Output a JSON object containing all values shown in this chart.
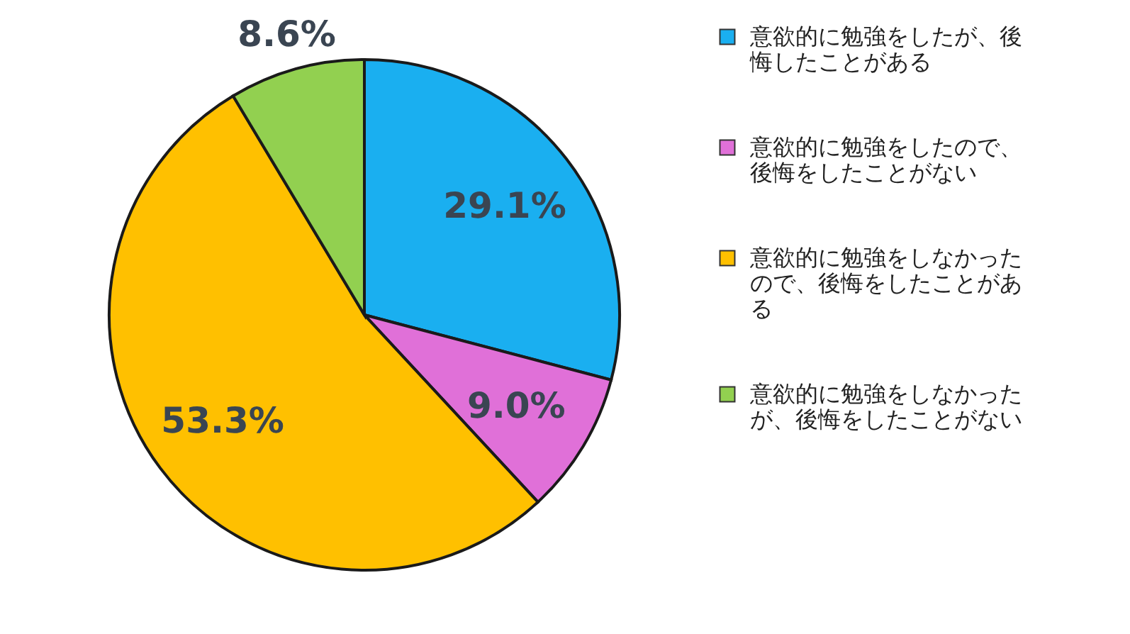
{
  "chart_data": {
    "type": "pie",
    "categories": [
      "意欲的に勉強をしたが、後悔したことがある",
      "意欲的に勉強をしたので、後悔をしたことがない",
      "意欲的に勉強をしなかったので、後悔をしたことがある",
      "意欲的に勉強をしなかったが、後悔をしたことがない"
    ],
    "values": [
      29.1,
      9.0,
      53.3,
      8.6
    ],
    "value_labels": [
      "29.1%",
      "9.0%",
      "53.3%",
      "8.6%"
    ],
    "colors": [
      "#1aaff0",
      "#e070d8",
      "#ffc000",
      "#92d050"
    ],
    "legend": "right"
  }
}
